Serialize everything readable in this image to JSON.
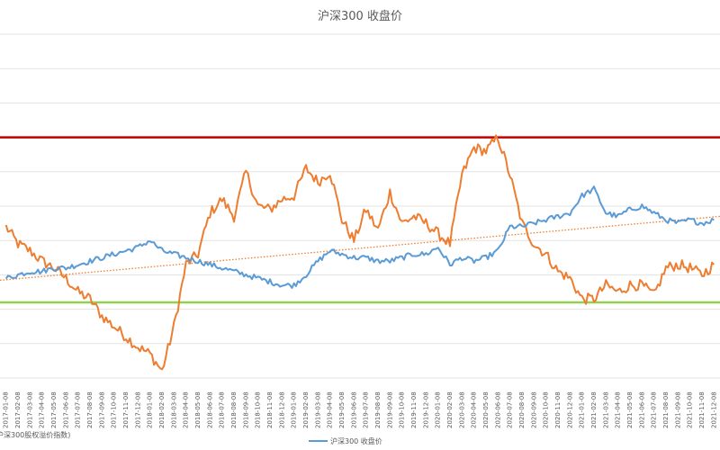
{
  "chart_data": {
    "type": "line",
    "title": "沪深300 收盘价",
    "legend": {
      "placement": "bottom",
      "entries": [
        "沪深300股权溢价指数)",
        "沪深300 收盘价"
      ]
    },
    "grid": true,
    "ylim": [
      0,
      10
    ],
    "x": [
      "2017-01-08",
      "2017-02-08",
      "2017-03-08",
      "2017-04-08",
      "2017-05-08",
      "2017-06-08",
      "2017-07-08",
      "2017-08-08",
      "2017-09-08",
      "2017-10-08",
      "2017-11-08",
      "2017-12-08",
      "2018-01-08",
      "2018-02-08",
      "2018-03-08",
      "2018-04-08",
      "2018-05-08",
      "2018-06-08",
      "2018-07-08",
      "2018-08-08",
      "2018-09-08",
      "2018-10-08",
      "2018-11-08",
      "2018-12-08",
      "2019-01-08",
      "2019-02-08",
      "2019-03-08",
      "2019-04-08",
      "2019-05-08",
      "2019-06-08",
      "2019-07-08",
      "2019-08-08",
      "2019-09-08",
      "2019-10-08",
      "2019-11-08",
      "2019-12-08",
      "2020-01-08",
      "2020-02-08",
      "2020-03-08",
      "2020-04-08",
      "2020-05-08",
      "2020-06-08",
      "2020-07-08",
      "2020-08-08",
      "2020-09-08",
      "2020-10-08",
      "2020-11-08",
      "2020-12-08",
      "2021-01-08",
      "2021-02-08",
      "2021-03-08",
      "2021-04-08",
      "2021-05-08",
      "2021-06-08",
      "2021-07-08",
      "2021-08-08",
      "2021-09-08",
      "2021-10-08",
      "2021-11-08",
      "2021-12-08"
    ],
    "x_tick_labels": [
      "2017-01-08",
      "2017-02-08",
      "2017-03-08",
      "2017-04-08",
      "2017-05-08",
      "2017-06-08",
      "2017-07-08",
      "2017-08-08",
      "2017-09-08",
      "2017-10-08",
      "2017-11-08",
      "2017-12-08",
      "2018-01-08",
      "2018-02-08",
      "2018-03-08",
      "2018-04-08",
      "2018-05-08",
      "2018-06-08",
      "2018-07-08",
      "2018-08-08",
      "2018-09-08",
      "2018-10-08",
      "2018-11-08",
      "2018-12-08",
      "2019-01-08",
      "2019-02-08",
      "2019-03-08",
      "2019-04-08",
      "2019-05-08",
      "2019-06-08",
      "2019-07-08",
      "2019-08-08",
      "2019-09-08",
      "2019-10-08",
      "2019-11-08",
      "2019-12-08",
      "2020-01-08",
      "2020-02-08",
      "2020-03-08",
      "2020-04-08",
      "2020-05-08",
      "2020-06-08",
      "2020-07-08",
      "2020-08-08",
      "2020-09-08",
      "2020-10-08",
      "2020-11-08",
      "2020-12-08",
      "2021-01-08",
      "2021-02-08",
      "2021-03-08",
      "2021-04-08",
      "2021-05-08",
      "2021-06-08",
      "2021-07-08",
      "2021-08-08",
      "2021-09-08",
      "2021-10-08",
      "2021-11-08",
      "2021-12-08"
    ],
    "series": [
      {
        "name": "沪深300股权溢价指数)",
        "color": "#ed7d31",
        "values": [
          4.4,
          3.9,
          3.7,
          3.4,
          3.2,
          2.9,
          2.5,
          2.3,
          1.8,
          1.5,
          1.2,
          0.9,
          0.7,
          0.2,
          1.5,
          3.3,
          3.6,
          4.8,
          5.2,
          4.7,
          6.0,
          5.0,
          4.9,
          5.2,
          5.3,
          6.1,
          5.7,
          6.0,
          4.6,
          4.0,
          4.9,
          4.3,
          5.4,
          4.5,
          4.7,
          4.5,
          4.2,
          3.9,
          5.9,
          6.7,
          6.6,
          7.0,
          5.9,
          4.5,
          3.9,
          3.6,
          3.1,
          2.9,
          2.3,
          2.3,
          2.7,
          2.5,
          2.7,
          2.7,
          2.4,
          3.2,
          3.3,
          3.2,
          3.0,
          3.3
        ]
      },
      {
        "name": "沪深300 收盘价",
        "color": "#5b9bd5",
        "values": [
          2.9,
          3.0,
          3.1,
          3.1,
          3.2,
          3.2,
          3.3,
          3.4,
          3.5,
          3.6,
          3.7,
          3.8,
          4.0,
          3.7,
          3.6,
          3.5,
          3.4,
          3.3,
          3.2,
          3.1,
          3.0,
          2.9,
          2.8,
          2.7,
          2.7,
          3.0,
          3.4,
          3.7,
          3.6,
          3.5,
          3.5,
          3.4,
          3.4,
          3.5,
          3.6,
          3.6,
          3.8,
          3.3,
          3.5,
          3.4,
          3.5,
          3.7,
          4.4,
          4.4,
          4.5,
          4.6,
          4.7,
          4.8,
          5.3,
          5.5,
          4.8,
          4.7,
          4.9,
          5.0,
          4.8,
          4.6,
          4.5,
          4.6,
          4.5,
          4.6
        ]
      }
    ],
    "reference_lines": [
      {
        "value": 7.0,
        "color": "#c00000"
      },
      {
        "value": 2.2,
        "color": "#92d050"
      }
    ],
    "trendline": {
      "of_series": 1,
      "color": "#ed7d31",
      "style": "dotted"
    }
  }
}
